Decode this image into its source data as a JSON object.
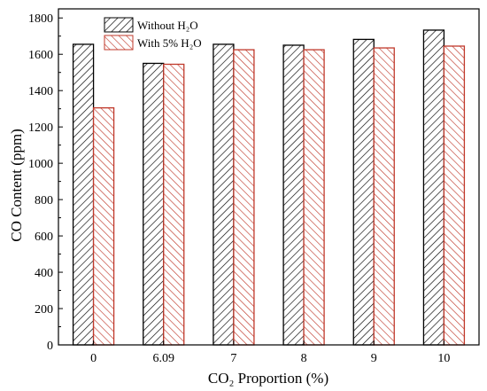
{
  "chart_data": {
    "type": "bar",
    "categories": [
      "0",
      "6.09",
      "7",
      "8",
      "9",
      "10"
    ],
    "series": [
      {
        "name": "Without H₂O",
        "values": [
          1655,
          1550,
          1655,
          1650,
          1682,
          1733
        ],
        "color": "#000000"
      },
      {
        "name": "With 5% H₂O",
        "values": [
          1305,
          1545,
          1625,
          1625,
          1635,
          1645
        ],
        "color": "#c0392b"
      }
    ],
    "xlabel": "CO₂ Proportion (%)",
    "ylabel": "CO Content (ppm)",
    "ylim": [
      0,
      1850
    ],
    "yticks": [
      0,
      200,
      400,
      600,
      800,
      1000,
      1200,
      1400,
      1600,
      1800
    ],
    "grid": false,
    "legend": "top-left"
  }
}
